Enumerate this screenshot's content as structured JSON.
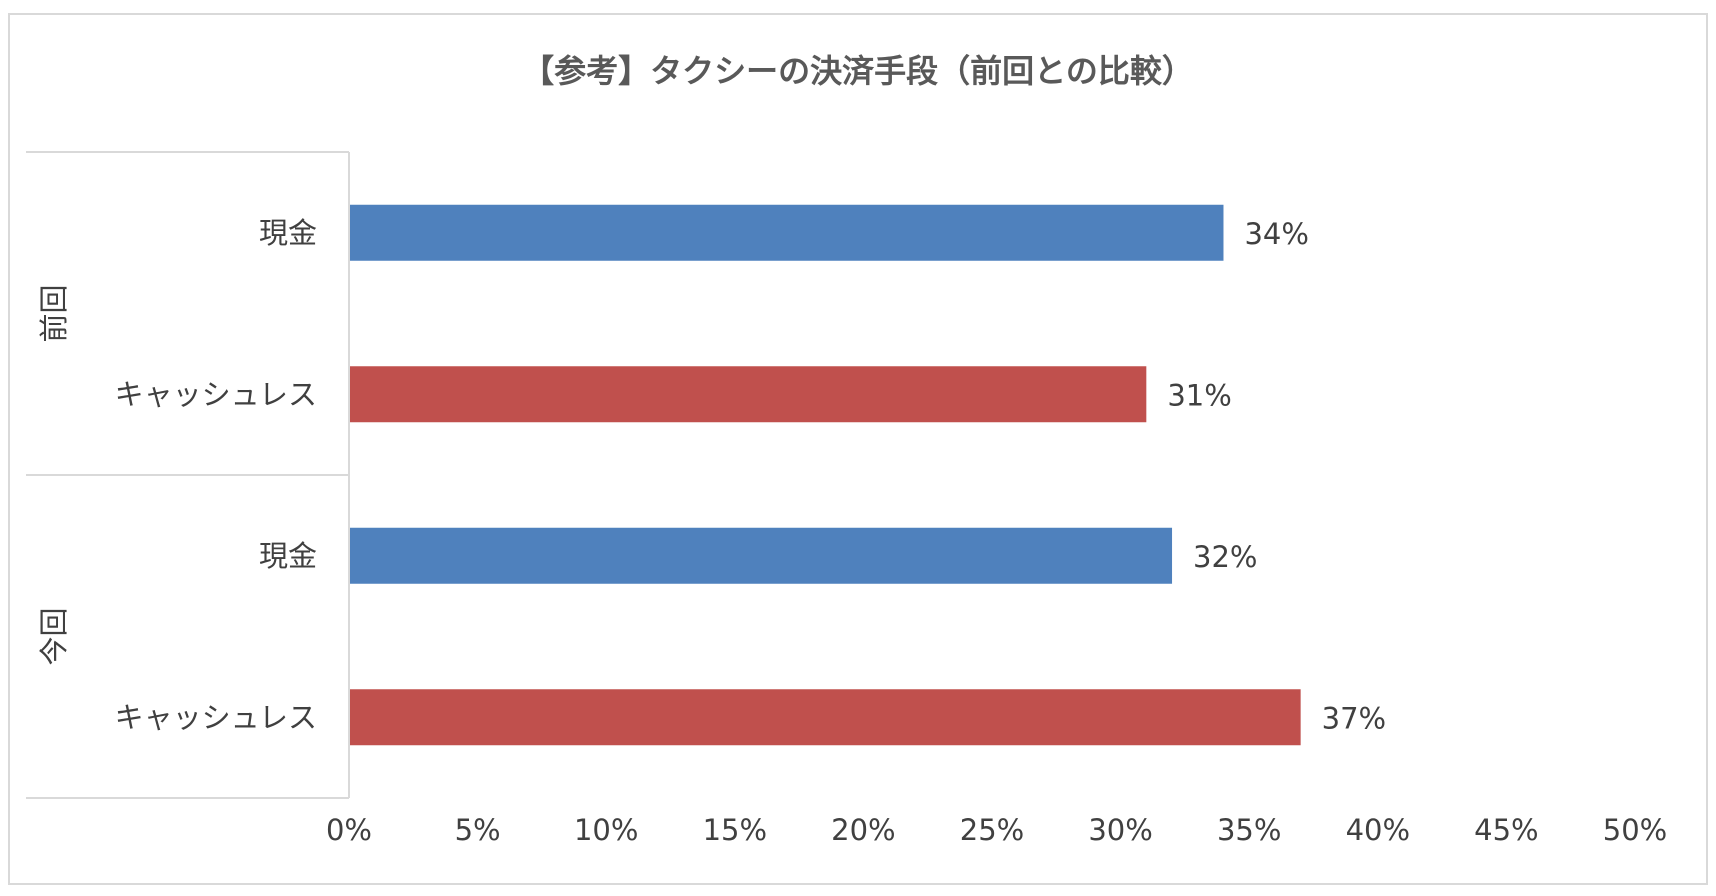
{
  "chart_data": {
    "type": "bar",
    "orientation": "horizontal",
    "title": "【参考】タクシーの決済手段（前回との比較）",
    "groups": [
      {
        "name": "前回",
        "items": [
          {
            "category": "現金",
            "value": 34,
            "label": "34%",
            "color": "#4F81BD"
          },
          {
            "category": "キャッシュレス",
            "value": 31,
            "label": "31%",
            "color": "#C0504D"
          }
        ]
      },
      {
        "name": "今回",
        "items": [
          {
            "category": "現金",
            "value": 32,
            "label": "32%",
            "color": "#4F81BD"
          },
          {
            "category": "キャッシュレス",
            "value": 37,
            "label": "37%",
            "color": "#C0504D"
          }
        ]
      }
    ],
    "xlim": [
      0,
      50
    ],
    "xticks": [
      {
        "value": 0,
        "label": "0%"
      },
      {
        "value": 5,
        "label": "5%"
      },
      {
        "value": 10,
        "label": "10%"
      },
      {
        "value": 15,
        "label": "15%"
      },
      {
        "value": 20,
        "label": "20%"
      },
      {
        "value": 25,
        "label": "25%"
      },
      {
        "value": 30,
        "label": "30%"
      },
      {
        "value": 35,
        "label": "35%"
      },
      {
        "value": 40,
        "label": "40%"
      },
      {
        "value": 45,
        "label": "45%"
      },
      {
        "value": 50,
        "label": "50%"
      }
    ],
    "grid": false,
    "legend": "none"
  }
}
